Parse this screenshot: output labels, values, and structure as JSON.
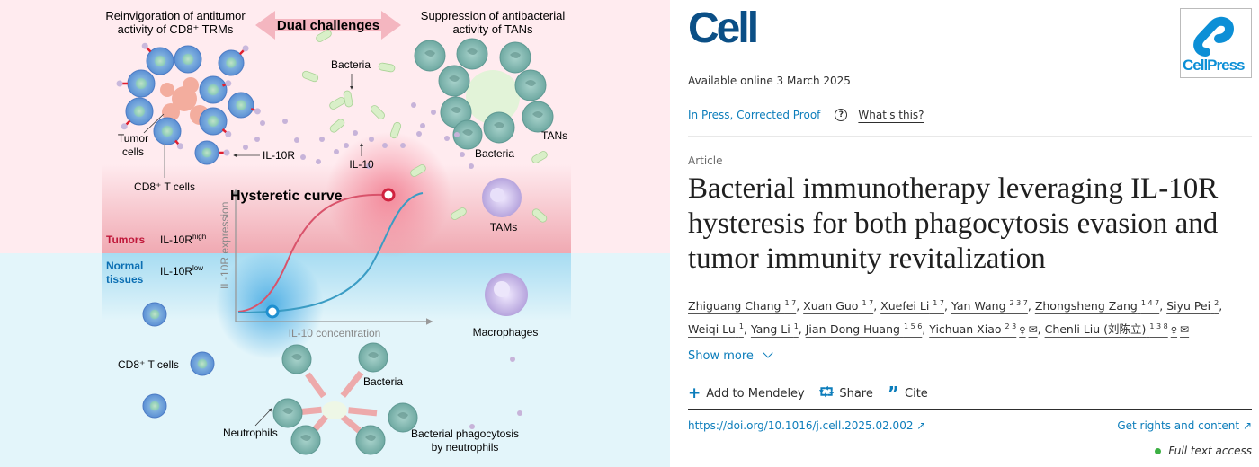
{
  "figure": {
    "top_left_title": [
      "Reinvigoration of antitumor",
      "activity of CD8⁺ TRMs"
    ],
    "center_title": "Dual challenges",
    "top_right_title": [
      "Suppression of antibacterial",
      "activity of TANs"
    ],
    "labels": {
      "bacteria_top": "Bacteria",
      "tumor_cells": [
        "Tumor",
        "cells"
      ],
      "il10r": "IL-10R",
      "il10": "IL-10",
      "cd8_top": "CD8⁺ T cells",
      "bacteria_tans": "Bacteria",
      "tans": "TANs",
      "tams": "TAMs",
      "hysteretic_curve": "Hysteretic curve",
      "y_axis": "IL-10R expression",
      "x_axis": "IL-10 concentration",
      "tumors": "Tumors",
      "il10r_high": "IL-10R",
      "high_sup": "high",
      "normal_tissues": [
        "Normal",
        "tissues"
      ],
      "il10r_low": "IL-10R",
      "low_sup": "low",
      "macrophages": "Macrophages",
      "cd8_bottom": "CD8⁺ T cells",
      "bacteria_bottom": "Bacteria",
      "neutrophils": "Neutrophils",
      "phagocytosis": [
        "Bacterial phagocytosis",
        "by neutrophils"
      ]
    },
    "colors": {
      "tumor_region": "#ffebef",
      "normal_region": "#e3f5fa",
      "red_curve": "#d9536b",
      "blue_curve": "#3a9cc4"
    }
  },
  "journal": {
    "logo": "Cell",
    "publisher_logo": "CellPress"
  },
  "available_online": "Available online 3 March 2025",
  "status": {
    "label": "In Press, Corrected Proof",
    "help_icon": "question-circle-icon",
    "whats_this": "What's this?"
  },
  "article_type": "Article",
  "title": "Bacterial immunotherapy leveraging IL-10R hysteresis for both phagocytosis evasion and tumor immunity revitalization",
  "authors": [
    {
      "name": "Zhiguang Chang",
      "sup": "1 7"
    },
    {
      "name": "Xuan Guo",
      "sup": "1 7"
    },
    {
      "name": "Xuefei Li",
      "sup": "1 7"
    },
    {
      "name": "Yan Wang",
      "sup": "2 3 7"
    },
    {
      "name": "Zhongsheng Zang",
      "sup": "1 4 7"
    },
    {
      "name": "Siyu Pei",
      "sup": "2"
    },
    {
      "name": "Weiqi Lu",
      "sup": "1"
    },
    {
      "name": "Yang Li",
      "sup": "1"
    },
    {
      "name": "Jian-Dong Huang",
      "sup": "1 5 6"
    },
    {
      "name": "Yichuan Xiao",
      "sup": "2 3",
      "icons": true
    },
    {
      "name": "Chenli Liu (刘陈立)",
      "sup": "1 3 8",
      "icons": true
    }
  ],
  "show_more": "Show more",
  "actions": {
    "mendeley": "Add to Mendeley",
    "share": "Share",
    "cite": "Cite"
  },
  "doi": "https://doi.org/10.1016/j.cell.2025.02.002",
  "rights": "Get rights and content",
  "access": {
    "label": "Full text access",
    "color": "#3cb043"
  }
}
